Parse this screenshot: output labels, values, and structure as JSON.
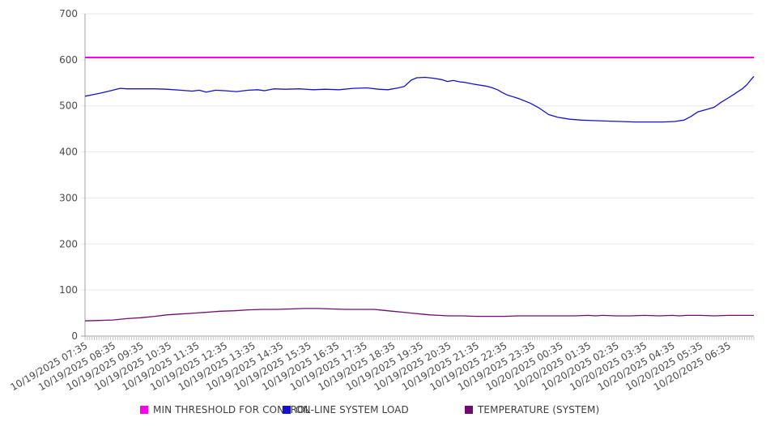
{
  "chart_data": {
    "type": "line",
    "title": "",
    "xlabel": "",
    "ylabel": "",
    "x_axis": {
      "unit": "minutes-since-first-sample",
      "domain": [
        0,
        1435
      ],
      "sample_interval_minutes": 5,
      "tick_interval_minutes": 60,
      "tick_labels": [
        "10/19/2025 07:35",
        "10/19/2025 08:35",
        "10/19/2025 09:35",
        "10/19/2025 10:35",
        "10/19/2025 11:35",
        "10/19/2025 12:35",
        "10/19/2025 13:35",
        "10/19/2025 14:35",
        "10/19/2025 15:35",
        "10/19/2025 16:35",
        "10/19/2025 17:35",
        "10/19/2025 18:35",
        "10/19/2025 19:35",
        "10/19/2025 20:35",
        "10/19/2025 21:35",
        "10/19/2025 22:35",
        "10/19/2025 23:35",
        "10/20/2025 00:35",
        "10/20/2025 01:35",
        "10/20/2025 02:35",
        "10/20/2025 03:35",
        "10/20/2025 04:35",
        "10/20/2025 05:35",
        "10/20/2025 06:35"
      ],
      "label_rotation_deg": -30,
      "minor_ticks": true
    },
    "y_axis": {
      "min": 0,
      "max": 700,
      "tick_step": 100,
      "tick_labels": [
        "0",
        "100",
        "200",
        "300",
        "400",
        "500",
        "600",
        "700"
      ],
      "grid": true
    },
    "legend": {
      "position": "bottom",
      "entries": [
        {
          "label": "MIN THRESHOLD FOR CONTROL",
          "color": "#ff00ee"
        },
        {
          "label": "ON-LINE SYSTEM LOAD",
          "color": "#1212d0"
        },
        {
          "label": "TEMPERATURE (SYSTEM)",
          "color": "#730a73"
        }
      ]
    },
    "series": [
      {
        "name": "MIN THRESHOLD FOR CONTROL",
        "color": "#ff00ee",
        "points": [
          [
            0,
            605
          ],
          [
            1435,
            605
          ]
        ]
      },
      {
        "name": "ON-LINE SYSTEM LOAD",
        "color": "#1212d0",
        "points": [
          [
            0,
            521
          ],
          [
            15,
            524
          ],
          [
            35,
            528
          ],
          [
            55,
            533
          ],
          [
            75,
            538
          ],
          [
            90,
            537
          ],
          [
            120,
            537
          ],
          [
            150,
            537
          ],
          [
            175,
            536
          ],
          [
            205,
            534
          ],
          [
            230,
            532
          ],
          [
            245,
            534
          ],
          [
            260,
            530
          ],
          [
            280,
            534
          ],
          [
            300,
            533
          ],
          [
            325,
            531
          ],
          [
            350,
            534
          ],
          [
            370,
            535
          ],
          [
            385,
            533
          ],
          [
            405,
            537
          ],
          [
            430,
            536
          ],
          [
            460,
            537
          ],
          [
            490,
            535
          ],
          [
            515,
            536
          ],
          [
            545,
            535
          ],
          [
            575,
            538
          ],
          [
            605,
            539
          ],
          [
            630,
            536
          ],
          [
            650,
            535
          ],
          [
            672,
            539
          ],
          [
            685,
            542
          ],
          [
            700,
            556
          ],
          [
            712,
            561
          ],
          [
            730,
            562
          ],
          [
            748,
            560
          ],
          [
            765,
            557
          ],
          [
            778,
            553
          ],
          [
            790,
            555
          ],
          [
            805,
            552
          ],
          [
            815,
            551
          ],
          [
            835,
            547
          ],
          [
            860,
            543
          ],
          [
            872,
            540
          ],
          [
            885,
            535
          ],
          [
            895,
            529
          ],
          [
            905,
            524
          ],
          [
            930,
            516
          ],
          [
            955,
            506
          ],
          [
            975,
            495
          ],
          [
            995,
            481
          ],
          [
            1015,
            475
          ],
          [
            1040,
            471
          ],
          [
            1065,
            469
          ],
          [
            1090,
            468
          ],
          [
            1120,
            467
          ],
          [
            1150,
            466
          ],
          [
            1180,
            465
          ],
          [
            1210,
            465
          ],
          [
            1240,
            465
          ],
          [
            1265,
            466
          ],
          [
            1285,
            469
          ],
          [
            1300,
            477
          ],
          [
            1315,
            487
          ],
          [
            1330,
            491
          ],
          [
            1350,
            497
          ],
          [
            1365,
            508
          ],
          [
            1380,
            517
          ],
          [
            1395,
            527
          ],
          [
            1410,
            537
          ],
          [
            1420,
            546
          ],
          [
            1428,
            556
          ],
          [
            1435,
            564
          ]
        ]
      },
      {
        "name": "TEMPERATURE (SYSTEM)",
        "color": "#730a73",
        "points": [
          [
            0,
            33
          ],
          [
            30,
            34
          ],
          [
            60,
            35
          ],
          [
            90,
            38
          ],
          [
            120,
            40
          ],
          [
            150,
            43
          ],
          [
            175,
            46
          ],
          [
            205,
            48
          ],
          [
            235,
            50
          ],
          [
            265,
            52
          ],
          [
            290,
            54
          ],
          [
            320,
            55
          ],
          [
            350,
            57
          ],
          [
            380,
            58
          ],
          [
            410,
            58
          ],
          [
            440,
            59
          ],
          [
            470,
            60
          ],
          [
            500,
            60
          ],
          [
            530,
            59
          ],
          [
            560,
            58
          ],
          [
            590,
            58
          ],
          [
            620,
            58
          ],
          [
            640,
            56
          ],
          [
            660,
            54
          ],
          [
            680,
            52
          ],
          [
            700,
            50
          ],
          [
            720,
            48
          ],
          [
            740,
            46
          ],
          [
            760,
            45
          ],
          [
            780,
            44
          ],
          [
            810,
            44
          ],
          [
            840,
            43
          ],
          [
            870,
            43
          ],
          [
            900,
            43
          ],
          [
            930,
            44
          ],
          [
            960,
            44
          ],
          [
            990,
            44
          ],
          [
            1020,
            44
          ],
          [
            1050,
            44
          ],
          [
            1080,
            45
          ],
          [
            1095,
            44
          ],
          [
            1110,
            45
          ],
          [
            1140,
            44
          ],
          [
            1170,
            44
          ],
          [
            1200,
            45
          ],
          [
            1230,
            44
          ],
          [
            1260,
            45
          ],
          [
            1275,
            44
          ],
          [
            1290,
            45
          ],
          [
            1320,
            45
          ],
          [
            1350,
            44
          ],
          [
            1380,
            45
          ],
          [
            1410,
            45
          ],
          [
            1435,
            45
          ]
        ]
      }
    ],
    "colors": {
      "grid": "#e9e9e9",
      "axis": "#a0a0a0",
      "minor_tick": "#c4c4c4",
      "tick_label": "#4a4a4a",
      "background": "#ffffff"
    }
  }
}
